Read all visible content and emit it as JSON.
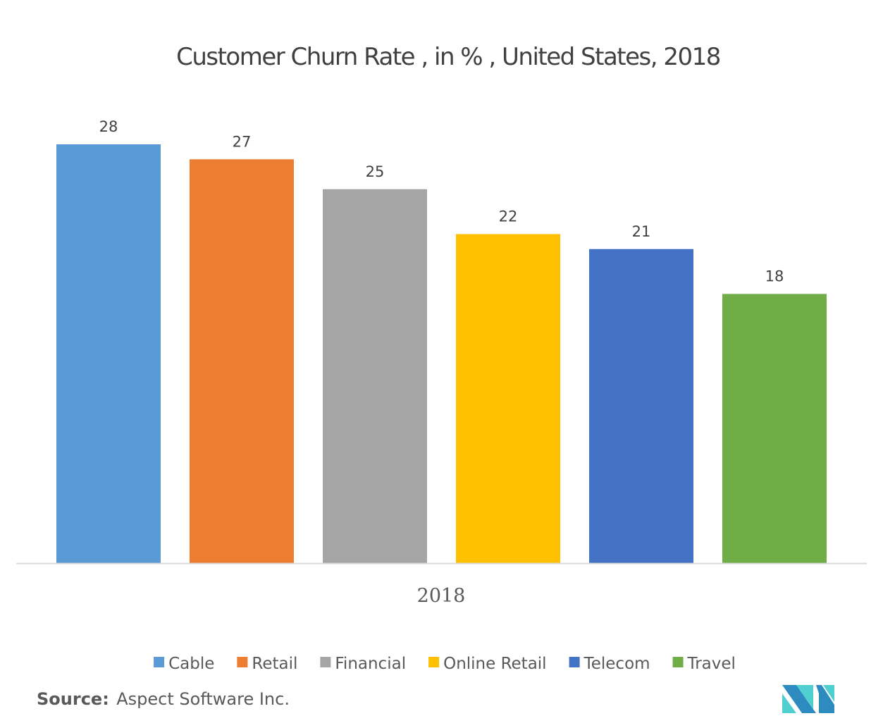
{
  "chart_data": {
    "type": "bar",
    "title": "Customer Churn Rate , in % , United States, 2018",
    "xlabel": "",
    "ylabel": "",
    "categories": [
      "2018"
    ],
    "series": [
      {
        "name": "Cable",
        "values": [
          28
        ],
        "color": "#5B9BD5"
      },
      {
        "name": "Retail",
        "values": [
          27
        ],
        "color": "#ED7D31"
      },
      {
        "name": "Financial",
        "values": [
          25
        ],
        "color": "#A5A5A5"
      },
      {
        "name": "Online Retail",
        "values": [
          22
        ],
        "color": "#FFC000"
      },
      {
        "name": "Telecom",
        "values": [
          21
        ],
        "color": "#4472C4"
      },
      {
        "name": "Travel",
        "values": [
          18
        ],
        "color": "#70AD47"
      }
    ],
    "ylim": [
      0,
      28
    ],
    "grid": false,
    "y_axis_visible": false,
    "data_labels": true,
    "legend_position": "bottom"
  },
  "footer": {
    "source_label": "Source:",
    "source_text": "Aspect Software Inc."
  },
  "logo": {
    "name": "Mordor Intelligence logo",
    "colors": {
      "dark": "#2E8BC0",
      "light": "#4FCFD0"
    }
  }
}
